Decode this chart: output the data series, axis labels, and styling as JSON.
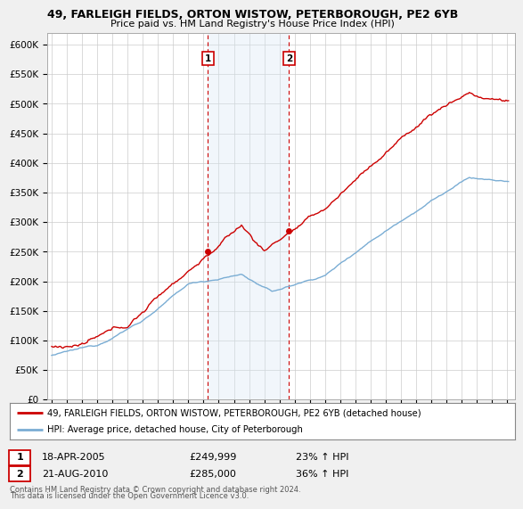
{
  "title1": "49, FARLEIGH FIELDS, ORTON WISTOW, PETERBOROUGH, PE2 6YB",
  "title2": "Price paid vs. HM Land Registry's House Price Index (HPI)",
  "yticks": [
    0,
    50000,
    100000,
    150000,
    200000,
    250000,
    300000,
    350000,
    400000,
    450000,
    500000,
    550000,
    600000
  ],
  "ytick_labels": [
    "£0",
    "£50K",
    "£100K",
    "£150K",
    "£200K",
    "£250K",
    "£300K",
    "£350K",
    "£400K",
    "£450K",
    "£500K",
    "£550K",
    "£600K"
  ],
  "xlim_start": 1994.7,
  "xlim_end": 2025.5,
  "ylim": [
    0,
    620000
  ],
  "sale1_year": 2005.29,
  "sale1_price": 249999,
  "sale1_label": "1",
  "sale1_date": "18-APR-2005",
  "sale1_pct": "23% ↑ HPI",
  "sale2_year": 2010.63,
  "sale2_price": 285000,
  "sale2_label": "2",
  "sale2_date": "21-AUG-2010",
  "sale2_pct": "36% ↑ HPI",
  "property_color": "#cc0000",
  "hpi_color": "#7aadd4",
  "background_color": "#f0f0f0",
  "plot_bg": "#ffffff",
  "shade_color": "#d8e8f4",
  "legend_property": "49, FARLEIGH FIELDS, ORTON WISTOW, PETERBOROUGH, PE2 6YB (detached house)",
  "legend_hpi": "HPI: Average price, detached house, City of Peterborough",
  "footer1": "Contains HM Land Registry data © Crown copyright and database right 2024.",
  "footer2": "This data is licensed under the Open Government Licence v3.0."
}
